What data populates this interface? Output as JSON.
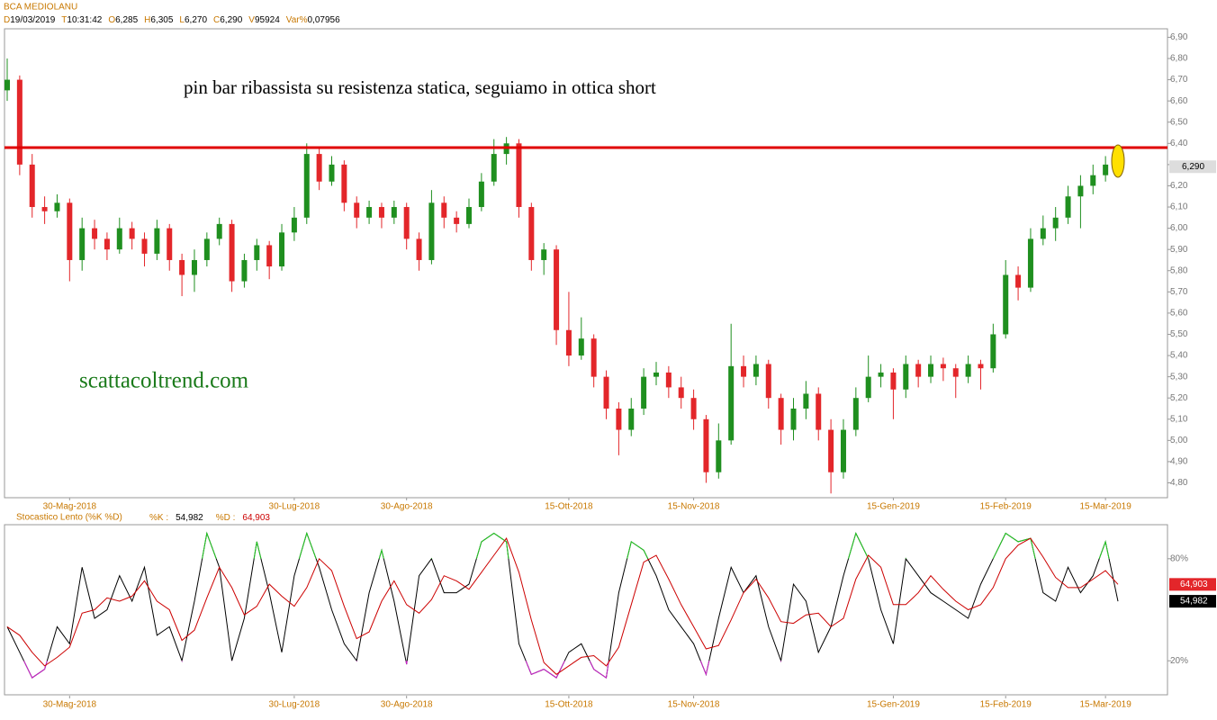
{
  "chart_data": [
    {
      "type": "candlestick",
      "title": "BCA MEDIOLANU",
      "info": [
        {
          "key": "D",
          "value": "19/03/2019"
        },
        {
          "key": "T",
          "value": "10:31:42"
        },
        {
          "key": "O",
          "value": "6,285"
        },
        {
          "key": "H",
          "value": "6,305"
        },
        {
          "key": "L",
          "value": "6,270"
        },
        {
          "key": "C",
          "value": "6,290"
        },
        {
          "key": "V",
          "value": "95924"
        },
        {
          "key": "Var%",
          "value": "0,07956"
        }
      ],
      "annotations": [
        "pin bar ribassista su resistenza statica, seguiamo in ottica short",
        "scattacoltrend.com"
      ],
      "up_color": "#1f8f1f",
      "down_color": "#e3262a",
      "resistance": 6.38,
      "resistance_color": "#e00000",
      "last_price": {
        "value": 6.29,
        "label": "6,290"
      },
      "ylim": [
        4.73,
        6.94
      ],
      "yticks": [
        {
          "value": 4.8,
          "label": "4,80"
        },
        {
          "value": 4.9,
          "label": "4,90"
        },
        {
          "value": 5.0,
          "label": "5,00"
        },
        {
          "value": 5.1,
          "label": "5,10"
        },
        {
          "value": 5.2,
          "label": "5,20"
        },
        {
          "value": 5.3,
          "label": "5,30"
        },
        {
          "value": 5.4,
          "label": "5,40"
        },
        {
          "value": 5.5,
          "label": "5,50"
        },
        {
          "value": 5.6,
          "label": "5,60"
        },
        {
          "value": 5.7,
          "label": "5,70"
        },
        {
          "value": 5.8,
          "label": "5,80"
        },
        {
          "value": 5.9,
          "label": "5,90"
        },
        {
          "value": 6.0,
          "label": "6,00"
        },
        {
          "value": 6.1,
          "label": "6,10"
        },
        {
          "value": 6.2,
          "label": "6,20"
        },
        {
          "value": 6.3,
          "label": "6,30"
        },
        {
          "value": 6.4,
          "label": "6,40"
        },
        {
          "value": 6.5,
          "label": "6,50"
        },
        {
          "value": 6.6,
          "label": "6,60"
        },
        {
          "value": 6.7,
          "label": "6,70"
        },
        {
          "value": 6.8,
          "label": "6,80"
        },
        {
          "value": 6.9,
          "label": "6,90"
        }
      ],
      "xlim": [
        0,
        89
      ],
      "xticks": [
        {
          "value": 5,
          "label": "30-Mag-2018"
        },
        {
          "value": 23,
          "label": "30-Lug-2018"
        },
        {
          "value": 32,
          "label": "30-Ago-2018"
        },
        {
          "value": 45,
          "label": "15-Ott-2018"
        },
        {
          "value": 55,
          "label": "15-Nov-2018"
        },
        {
          "value": 71,
          "label": "15-Gen-2019"
        },
        {
          "value": 80,
          "label": "15-Feb-2019"
        },
        {
          "value": 88,
          "label": "15-Mar-2019"
        }
      ],
      "candles": [
        [
          6.65,
          6.8,
          6.6,
          6.7
        ],
        [
          6.7,
          6.72,
          6.25,
          6.3
        ],
        [
          6.3,
          6.35,
          6.05,
          6.1
        ],
        [
          6.1,
          6.15,
          6.02,
          6.08
        ],
        [
          6.08,
          6.16,
          6.05,
          6.12
        ],
        [
          6.12,
          6.14,
          5.75,
          5.85
        ],
        [
          5.85,
          6.05,
          5.8,
          6.0
        ],
        [
          6.0,
          6.04,
          5.9,
          5.95
        ],
        [
          5.95,
          5.98,
          5.85,
          5.9
        ],
        [
          5.9,
          6.05,
          5.88,
          6.0
        ],
        [
          6.0,
          6.03,
          5.9,
          5.95
        ],
        [
          5.95,
          5.98,
          5.82,
          5.88
        ],
        [
          5.88,
          6.04,
          5.85,
          6.0
        ],
        [
          6.0,
          6.02,
          5.8,
          5.85
        ],
        [
          5.85,
          5.88,
          5.68,
          5.78
        ],
        [
          5.78,
          5.9,
          5.7,
          5.85
        ],
        [
          5.85,
          5.98,
          5.82,
          5.95
        ],
        [
          5.95,
          6.05,
          5.92,
          6.02
        ],
        [
          6.02,
          6.04,
          5.7,
          5.75
        ],
        [
          5.75,
          5.88,
          5.72,
          5.85
        ],
        [
          5.85,
          5.95,
          5.8,
          5.92
        ],
        [
          5.92,
          5.94,
          5.76,
          5.82
        ],
        [
          5.82,
          6.02,
          5.8,
          5.98
        ],
        [
          5.98,
          6.1,
          5.94,
          6.05
        ],
        [
          6.05,
          6.4,
          6.02,
          6.35
        ],
        [
          6.35,
          6.38,
          6.18,
          6.22
        ],
        [
          6.22,
          6.34,
          6.2,
          6.3
        ],
        [
          6.3,
          6.32,
          6.08,
          6.12
        ],
        [
          6.12,
          6.15,
          6.0,
          6.05
        ],
        [
          6.05,
          6.13,
          6.02,
          6.1
        ],
        [
          6.1,
          6.12,
          6.0,
          6.05
        ],
        [
          6.05,
          6.13,
          6.02,
          6.1
        ],
        [
          6.1,
          6.12,
          5.9,
          5.95
        ],
        [
          5.95,
          5.98,
          5.8,
          5.85
        ],
        [
          5.85,
          6.18,
          5.83,
          6.12
        ],
        [
          6.12,
          6.15,
          6.0,
          6.05
        ],
        [
          6.05,
          6.08,
          5.98,
          6.02
        ],
        [
          6.02,
          6.14,
          6.0,
          6.1
        ],
        [
          6.1,
          6.26,
          6.08,
          6.22
        ],
        [
          6.22,
          6.42,
          6.2,
          6.35
        ],
        [
          6.35,
          6.43,
          6.3,
          6.4
        ],
        [
          6.4,
          6.42,
          6.05,
          6.1
        ],
        [
          6.1,
          6.12,
          5.8,
          5.85
        ],
        [
          5.85,
          5.93,
          5.78,
          5.9
        ],
        [
          5.9,
          5.92,
          5.45,
          5.52
        ],
        [
          5.52,
          5.7,
          5.35,
          5.4
        ],
        [
          5.4,
          5.58,
          5.38,
          5.48
        ],
        [
          5.48,
          5.5,
          5.25,
          5.3
        ],
        [
          5.3,
          5.33,
          5.1,
          5.15
        ],
        [
          5.15,
          5.18,
          4.93,
          5.05
        ],
        [
          5.05,
          5.2,
          5.02,
          5.15
        ],
        [
          5.15,
          5.34,
          5.12,
          5.3
        ],
        [
          5.3,
          5.37,
          5.26,
          5.32
        ],
        [
          5.32,
          5.35,
          5.2,
          5.25
        ],
        [
          5.25,
          5.3,
          5.15,
          5.2
        ],
        [
          5.2,
          5.24,
          5.05,
          5.1
        ],
        [
          5.1,
          5.12,
          4.8,
          4.85
        ],
        [
          4.85,
          5.08,
          4.82,
          5.0
        ],
        [
          5.0,
          5.55,
          4.98,
          5.35
        ],
        [
          5.35,
          5.4,
          5.25,
          5.3
        ],
        [
          5.3,
          5.4,
          5.26,
          5.36
        ],
        [
          5.36,
          5.38,
          5.15,
          5.2
        ],
        [
          5.2,
          5.22,
          4.98,
          5.05
        ],
        [
          5.05,
          5.2,
          5.0,
          5.15
        ],
        [
          5.15,
          5.28,
          5.1,
          5.22
        ],
        [
          5.22,
          5.25,
          5.0,
          5.05
        ],
        [
          5.05,
          5.1,
          4.75,
          4.85
        ],
        [
          4.85,
          5.1,
          4.82,
          5.05
        ],
        [
          5.05,
          5.25,
          5.02,
          5.2
        ],
        [
          5.2,
          5.4,
          5.18,
          5.3
        ],
        [
          5.3,
          5.36,
          5.25,
          5.32
        ],
        [
          5.32,
          5.34,
          5.1,
          5.24
        ],
        [
          5.24,
          5.4,
          5.2,
          5.36
        ],
        [
          5.36,
          5.38,
          5.25,
          5.3
        ],
        [
          5.3,
          5.4,
          5.27,
          5.36
        ],
        [
          5.36,
          5.39,
          5.28,
          5.34
        ],
        [
          5.34,
          5.36,
          5.2,
          5.3
        ],
        [
          5.3,
          5.4,
          5.27,
          5.36
        ],
        [
          5.36,
          5.38,
          5.24,
          5.34
        ],
        [
          5.34,
          5.55,
          5.32,
          5.5
        ],
        [
          5.5,
          5.85,
          5.48,
          5.78
        ],
        [
          5.78,
          5.82,
          5.66,
          5.72
        ],
        [
          5.72,
          6.0,
          5.7,
          5.95
        ],
        [
          5.95,
          6.06,
          5.92,
          6.0
        ],
        [
          6.0,
          6.1,
          5.94,
          6.05
        ],
        [
          6.05,
          6.2,
          6.02,
          6.15
        ],
        [
          6.15,
          6.25,
          6.0,
          6.2
        ],
        [
          6.2,
          6.3,
          6.16,
          6.25
        ],
        [
          6.25,
          6.34,
          6.22,
          6.3
        ],
        [
          6.285,
          6.305,
          6.27,
          6.29
        ]
      ]
    },
    {
      "type": "line",
      "title": "Stocastico Lento (%K %D)",
      "ylim": [
        0,
        100
      ],
      "yticks": [
        {
          "value": 20,
          "label": "20%"
        },
        {
          "value": 80,
          "label": "80%"
        }
      ],
      "xlim": [
        0,
        89
      ],
      "xticks": [
        {
          "value": 5,
          "label": "30-Mag-2018"
        },
        {
          "value": 23,
          "label": "30-Lug-2018"
        },
        {
          "value": 32,
          "label": "30-Ago-2018"
        },
        {
          "value": 45,
          "label": "15-Ott-2018"
        },
        {
          "value": 55,
          "label": "15-Nov-2018"
        },
        {
          "value": 71,
          "label": "15-Gen-2019"
        },
        {
          "value": 80,
          "label": "15-Feb-2019"
        },
        {
          "value": 88,
          "label": "15-Mar-2019"
        }
      ],
      "overbought_color": "#22cc22",
      "oversold_color": "#cc22cc",
      "series": [
        {
          "name": "%K :",
          "color": "#000000",
          "last_label": "54,982",
          "values": [
            40,
            25,
            10,
            15,
            40,
            30,
            75,
            45,
            50,
            70,
            55,
            75,
            35,
            40,
            20,
            55,
            95,
            75,
            20,
            45,
            90,
            60,
            25,
            70,
            95,
            75,
            50,
            30,
            20,
            60,
            85,
            55,
            18,
            70,
            80,
            60,
            60,
            65,
            90,
            95,
            90,
            30,
            12,
            15,
            10,
            25,
            30,
            15,
            10,
            60,
            90,
            85,
            70,
            50,
            40,
            30,
            12,
            45,
            75,
            60,
            70,
            40,
            20,
            65,
            55,
            25,
            40,
            70,
            95,
            80,
            50,
            30,
            80,
            70,
            60,
            55,
            50,
            45,
            65,
            80,
            95,
            90,
            92,
            60,
            55,
            75,
            60,
            70,
            90,
            54.982
          ]
        },
        {
          "name": "%D :",
          "color": "#cc0000",
          "last_label": "64,903",
          "values": [
            40,
            35,
            25,
            17,
            22,
            28,
            48,
            50,
            57,
            55,
            58,
            67,
            55,
            50,
            32,
            38,
            57,
            75,
            63,
            47,
            52,
            65,
            58,
            52,
            63,
            80,
            73,
            52,
            33,
            37,
            55,
            67,
            53,
            48,
            56,
            70,
            67,
            62,
            72,
            82,
            92,
            72,
            44,
            19,
            12,
            17,
            22,
            23,
            17,
            28,
            53,
            78,
            82,
            68,
            53,
            40,
            27,
            29,
            44,
            60,
            68,
            57,
            43,
            42,
            47,
            48,
            40,
            45,
            68,
            82,
            75,
            53,
            53,
            60,
            70,
            62,
            55,
            50,
            53,
            63,
            80,
            88,
            92,
            81,
            69,
            63,
            63,
            68,
            73,
            64.903
          ]
        }
      ]
    }
  ]
}
